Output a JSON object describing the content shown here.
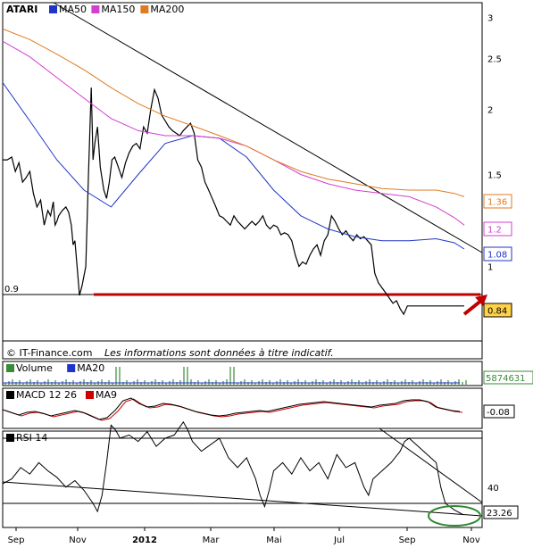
{
  "chart_data": [
    {
      "type": "line",
      "panel": "price",
      "title": "ATARI",
      "legend": [
        {
          "name": "MA50",
          "color": "#1f35c8"
        },
        {
          "name": "MA150",
          "color": "#d23fd2"
        },
        {
          "name": "MA200",
          "color": "#e07b21"
        }
      ],
      "legend_placement": "top-left",
      "y_scale": "log",
      "ylim": [
        0.72,
        3.2
      ],
      "y_ticks": [
        "3",
        "2.5",
        "2",
        "1.5",
        "1"
      ],
      "support_label": "0.9",
      "support_level": 0.9,
      "last_values": [
        {
          "label": "1.36",
          "color": "#e07b21",
          "value": 1.36
        },
        {
          "label": "1.2",
          "color": "#d23fd2",
          "value": 1.2
        },
        {
          "label": "1.08",
          "color": "#1f35c8",
          "value": 1.08
        },
        {
          "label": "0.84",
          "color": "#000000",
          "value": 0.84,
          "highlight": "#ffd24a"
        }
      ],
      "series": [
        {
          "name": "Price",
          "color": "#000000",
          "x": [
            0,
            5,
            10,
            14,
            18,
            22,
            26,
            30,
            34,
            38,
            42,
            46,
            50,
            53,
            56,
            58,
            60,
            62,
            66,
            70,
            73,
            76,
            78,
            80,
            83,
            85,
            88,
            90,
            92,
            95,
            98,
            100,
            102,
            105,
            108,
            112,
            115,
            118,
            121,
            124,
            128,
            132,
            136,
            140,
            144,
            148,
            152,
            156,
            160,
            164,
            168,
            172,
            176,
            180,
            184,
            188,
            192,
            196,
            200,
            204,
            208,
            212,
            216,
            220,
            224,
            228,
            232,
            236,
            240,
            244,
            248,
            252,
            256,
            260,
            264,
            268,
            272,
            276,
            280,
            284,
            288,
            292,
            296,
            300,
            304,
            308,
            312,
            316,
            320,
            324,
            328,
            332,
            336,
            340,
            344,
            348,
            352,
            356,
            360,
            364,
            368,
            372,
            376,
            380,
            384,
            388,
            392,
            396,
            400,
            404,
            408,
            412,
            416,
            420,
            424,
            428,
            432,
            436,
            440,
            444,
            448,
            452,
            456,
            460,
            464,
            468,
            472,
            476,
            480,
            484,
            485,
            488,
            492,
            496,
            500,
            504,
            508,
            511
          ],
          "y": [
            1.6,
            1.6,
            1.62,
            1.52,
            1.58,
            1.45,
            1.48,
            1.52,
            1.38,
            1.3,
            1.34,
            1.2,
            1.28,
            1.25,
            1.33,
            1.2,
            1.22,
            1.25,
            1.28,
            1.3,
            1.27,
            1.2,
            1.1,
            1.12,
            0.97,
            0.88,
            0.92,
            0.96,
            1.0,
            1.5,
            2.2,
            1.6,
            1.72,
            1.85,
            1.55,
            1.4,
            1.35,
            1.45,
            1.6,
            1.62,
            1.55,
            1.48,
            1.58,
            1.65,
            1.7,
            1.72,
            1.68,
            1.85,
            1.8,
            2.0,
            2.18,
            2.1,
            1.95,
            1.9,
            1.85,
            1.82,
            1.8,
            1.78,
            1.82,
            1.85,
            1.88,
            1.8,
            1.6,
            1.55,
            1.45,
            1.4,
            1.35,
            1.3,
            1.25,
            1.24,
            1.22,
            1.2,
            1.25,
            1.22,
            1.2,
            1.18,
            1.2,
            1.22,
            1.2,
            1.22,
            1.25,
            1.2,
            1.18,
            1.2,
            1.19,
            1.15,
            1.16,
            1.15,
            1.12,
            1.05,
            1.0,
            1.02,
            1.01,
            1.05,
            1.08,
            1.1,
            1.05,
            1.12,
            1.15,
            1.25,
            1.22,
            1.18,
            1.15,
            1.17,
            1.14,
            1.12,
            1.15,
            1.13,
            1.14,
            1.12,
            1.1,
            0.97,
            0.93,
            0.91,
            0.89,
            0.87,
            0.85,
            0.86,
            0.83,
            0.81,
            0.84,
            0.84,
            0.84,
            0.84,
            0.84,
            0.84,
            0.84,
            0.84,
            0.84,
            0.84,
            0.84,
            0.84,
            0.84,
            0.84,
            0.84,
            0.84,
            0.84,
            0.84
          ]
        },
        {
          "name": "MA50",
          "color": "#1f35c8",
          "x": [
            0,
            30,
            60,
            90,
            120,
            150,
            180,
            210,
            240,
            270,
            300,
            330,
            360,
            390,
            420,
            450,
            480,
            500,
            511
          ],
          "y": [
            2.25,
            1.9,
            1.6,
            1.4,
            1.3,
            1.5,
            1.72,
            1.78,
            1.76,
            1.62,
            1.4,
            1.25,
            1.18,
            1.14,
            1.12,
            1.12,
            1.13,
            1.11,
            1.08
          ]
        },
        {
          "name": "MA150",
          "color": "#d23fd2",
          "x": [
            0,
            30,
            60,
            90,
            120,
            150,
            180,
            210,
            240,
            270,
            300,
            330,
            360,
            390,
            420,
            450,
            480,
            500,
            511
          ],
          "y": [
            2.7,
            2.52,
            2.3,
            2.1,
            1.92,
            1.82,
            1.78,
            1.78,
            1.76,
            1.7,
            1.6,
            1.5,
            1.44,
            1.4,
            1.38,
            1.36,
            1.3,
            1.24,
            1.2
          ]
        },
        {
          "name": "MA200",
          "color": "#e07b21",
          "x": [
            0,
            30,
            60,
            90,
            120,
            150,
            180,
            210,
            240,
            270,
            300,
            330,
            360,
            390,
            420,
            450,
            480,
            500,
            511
          ],
          "y": [
            2.85,
            2.72,
            2.55,
            2.38,
            2.2,
            2.05,
            1.94,
            1.86,
            1.78,
            1.7,
            1.6,
            1.52,
            1.47,
            1.44,
            1.41,
            1.4,
            1.4,
            1.38,
            1.36
          ]
        }
      ]
    },
    {
      "type": "bar",
      "panel": "volume",
      "legend": [
        {
          "name": "Volume",
          "color": "#3a8a3a"
        },
        {
          "name": "MA20",
          "color": "#1f35c8"
        }
      ],
      "last_value_label": "5874631"
    },
    {
      "type": "line",
      "panel": "macd",
      "legend": [
        {
          "name": "MACD 12 26",
          "color": "#000000"
        },
        {
          "name": "MA9",
          "color": "#cc0000"
        }
      ],
      "last_value_label": "-0.08"
    },
    {
      "type": "line",
      "panel": "rsi",
      "legend": [
        {
          "name": "RSI 14",
          "color": "#000000"
        }
      ],
      "y_ticks": [
        "40"
      ],
      "last_value_label": "23.26",
      "series": [
        {
          "name": "RSI 14",
          "color": "#000000",
          "x": [
            0,
            10,
            20,
            30,
            40,
            50,
            60,
            70,
            80,
            90,
            100,
            105,
            110,
            115,
            120,
            125,
            130,
            140,
            150,
            160,
            170,
            180,
            190,
            200,
            205,
            210,
            220,
            230,
            240,
            250,
            260,
            270,
            280,
            285,
            290,
            295,
            300,
            310,
            320,
            330,
            340,
            350,
            360,
            370,
            380,
            390,
            400,
            405,
            410,
            420,
            430,
            440,
            445,
            450,
            460,
            470,
            480,
            485,
            490,
            500,
            510
          ],
          "y": [
            42,
            45,
            52,
            48,
            55,
            50,
            46,
            40,
            44,
            38,
            30,
            25,
            35,
            55,
            78,
            75,
            70,
            72,
            68,
            74,
            65,
            70,
            72,
            80,
            75,
            68,
            62,
            66,
            70,
            58,
            52,
            58,
            45,
            35,
            28,
            38,
            50,
            55,
            48,
            58,
            50,
            55,
            45,
            60,
            52,
            55,
            40,
            35,
            45,
            50,
            55,
            62,
            68,
            70,
            65,
            60,
            55,
            40,
            30,
            26,
            23
          ]
        }
      ]
    },
    {
      "type": "line",
      "panel": "x-axis",
      "x_ticks": [
        "Sep",
        "Nov",
        "2012",
        "Mar",
        "Mai",
        "Jul",
        "Sep",
        "Nov"
      ]
    }
  ],
  "footer": {
    "copyright": "© IT-Finance.com",
    "disclaimer": "Les informations sont données à titre indicatif."
  }
}
